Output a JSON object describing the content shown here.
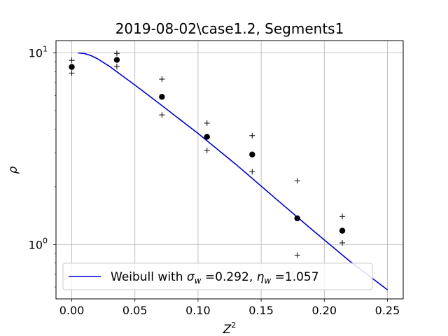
{
  "chart_data": {
    "type": "scatter",
    "title": "2019-08-02\\case1.2, Segments1",
    "xlabel": "Z",
    "xlabel_sup": "2",
    "ylabel": "ρ",
    "xscale": "linear",
    "yscale": "log",
    "xlim": [
      -0.0125,
      0.2625
    ],
    "ylim": [
      0.52,
      11.6
    ],
    "grid": true,
    "legend_position": "lower-left",
    "x_ticks": [
      0.0,
      0.05,
      0.1,
      0.15,
      0.2,
      0.25
    ],
    "x_tick_labels": [
      "0.00",
      "0.05",
      "0.10",
      "0.15",
      "0.20",
      "0.25"
    ],
    "y_ticks": [
      1,
      10
    ],
    "y_tick_label_base": "10",
    "y_tick_label_exps": [
      "0",
      "1"
    ],
    "series": [
      {
        "name": "Weibull with σw =0.292, ηw =1.057",
        "legend_parts": {
          "prefix": "Weibull with ",
          "sym1": "σ",
          "sub1": "w",
          "mid": " =0.292, ",
          "sym2": "η",
          "sub2": "w",
          "suffix": " =1.057"
        },
        "kind": "line",
        "color": "#0000cc",
        "x": [
          0.005,
          0.01,
          0.015,
          0.02,
          0.03,
          0.04,
          0.05,
          0.07,
          0.1,
          0.13,
          0.16,
          0.19,
          0.22,
          0.25
        ],
        "y": [
          10.0,
          9.93,
          9.7,
          9.35,
          8.5,
          7.6,
          6.8,
          5.4,
          3.8,
          2.62,
          1.77,
          1.2,
          0.82,
          0.58
        ]
      },
      {
        "kind": "points",
        "marker": "circle",
        "color": "#000000",
        "x": [
          0.0,
          0.0357,
          0.0714,
          0.1071,
          0.1429,
          0.1786,
          0.2143
        ],
        "y": [
          8.45,
          9.2,
          5.9,
          3.65,
          2.95,
          1.37,
          1.18
        ]
      },
      {
        "kind": "points",
        "marker": "plus",
        "color": "#000000",
        "x": [
          0.0,
          0.0357,
          0.0714,
          0.1071,
          0.1429,
          0.1786,
          0.2143
        ],
        "y": [
          9.15,
          9.95,
          7.3,
          4.3,
          3.7,
          2.15,
          1.4
        ]
      },
      {
        "kind": "points",
        "marker": "plus",
        "color": "#000000",
        "x": [
          0.0,
          0.0357,
          0.0714,
          0.1071,
          0.1429,
          0.1786,
          0.2143
        ],
        "y": [
          7.85,
          8.5,
          4.75,
          3.1,
          2.4,
          0.88,
          1.02
        ]
      }
    ]
  }
}
